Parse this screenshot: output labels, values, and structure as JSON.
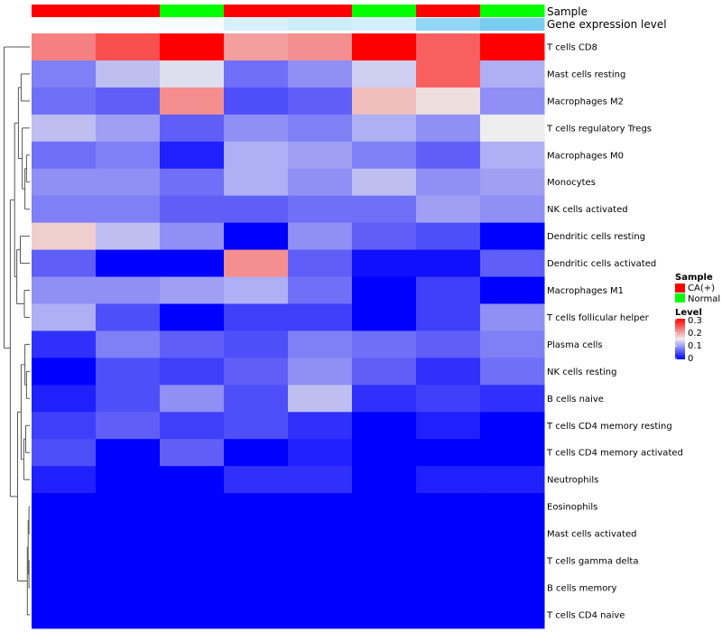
{
  "chart_data": {
    "type": "heatmap",
    "title": "",
    "annotation_labels": {
      "sample": "Sample",
      "gene_expression": "Gene expression level"
    },
    "samples": [
      {
        "group": "CA(+)",
        "gene_expression": 0.0
      },
      {
        "group": "CA(+)",
        "gene_expression": 0.02
      },
      {
        "group": "Normal",
        "gene_expression": 0.03
      },
      {
        "group": "CA(+)",
        "gene_expression": 0.16
      },
      {
        "group": "CA(+)",
        "gene_expression": 0.2
      },
      {
        "group": "Normal",
        "gene_expression": 0.18
      },
      {
        "group": "CA(+)",
        "gene_expression": 0.45
      },
      {
        "group": "Normal",
        "gene_expression": 0.55
      }
    ],
    "rows": [
      "T cells CD8",
      "Mast cells resting",
      "Macrophages M2",
      "T cells regulatory  Tregs",
      "Macrophages M0",
      "Monocytes",
      "NK cells activated",
      "Dendritic cells resting",
      "Dendritic cells activated",
      "Macrophages M1",
      "T cells follicular helper",
      "Plasma cells",
      "NK cells resting",
      "B cells naive",
      "T cells CD4 memory resting",
      "T cells CD4 memory activated",
      "Neutrophils",
      "Eosinophils",
      "Mast cells activated",
      "T cells gamma delta",
      "B cells memory",
      "T cells CD4 naive"
    ],
    "values": [
      [
        0.22,
        0.25,
        0.3,
        0.2,
        0.21,
        0.3,
        0.24,
        0.3
      ],
      [
        0.08,
        0.12,
        0.14,
        0.07,
        0.09,
        0.13,
        0.24,
        0.11
      ],
      [
        0.07,
        0.06,
        0.21,
        0.05,
        0.06,
        0.18,
        0.16,
        0.09
      ],
      [
        0.12,
        0.1,
        0.06,
        0.09,
        0.08,
        0.11,
        0.09,
        0.15
      ],
      [
        0.07,
        0.08,
        0.02,
        0.11,
        0.1,
        0.08,
        0.06,
        0.11
      ],
      [
        0.09,
        0.09,
        0.07,
        0.11,
        0.09,
        0.12,
        0.09,
        0.1
      ],
      [
        0.08,
        0.08,
        0.06,
        0.06,
        0.07,
        0.07,
        0.1,
        0.09
      ],
      [
        0.17,
        0.12,
        0.09,
        0.0,
        0.09,
        0.06,
        0.05,
        0.0
      ],
      [
        0.06,
        0.0,
        0.0,
        0.21,
        0.06,
        0.01,
        0.01,
        0.06
      ],
      [
        0.09,
        0.09,
        0.1,
        0.11,
        0.07,
        0.0,
        0.04,
        0.0
      ],
      [
        0.11,
        0.05,
        0.0,
        0.04,
        0.04,
        0.0,
        0.04,
        0.09
      ],
      [
        0.03,
        0.08,
        0.06,
        0.05,
        0.08,
        0.07,
        0.06,
        0.08
      ],
      [
        0.0,
        0.05,
        0.04,
        0.06,
        0.09,
        0.06,
        0.03,
        0.07
      ],
      [
        0.02,
        0.05,
        0.09,
        0.05,
        0.12,
        0.03,
        0.04,
        0.03
      ],
      [
        0.04,
        0.06,
        0.04,
        0.05,
        0.03,
        0.0,
        0.02,
        0.0
      ],
      [
        0.05,
        0.0,
        0.06,
        0.0,
        0.02,
        0.0,
        0.0,
        0.0
      ],
      [
        0.02,
        0.0,
        0.0,
        0.03,
        0.03,
        0.0,
        0.02,
        0.02
      ],
      [
        0.0,
        0.0,
        0.0,
        0.0,
        0.0,
        0.0,
        0.0,
        0.0
      ],
      [
        0.0,
        0.0,
        0.0,
        0.0,
        0.0,
        0.0,
        0.0,
        0.0
      ],
      [
        0.0,
        0.0,
        0.0,
        0.0,
        0.0,
        0.0,
        0.0,
        0.0
      ],
      [
        0.0,
        0.0,
        0.0,
        0.0,
        0.0,
        0.0,
        0.0,
        0.0
      ],
      [
        0.0,
        0.0,
        0.0,
        0.0,
        0.0,
        0.0,
        0.0,
        0.0
      ]
    ],
    "color_scale": {
      "min": 0,
      "mid": 0.15,
      "max": 0.3,
      "low": "#0000FF",
      "mid_color": "#EEEEEE",
      "high": "#FF0000"
    },
    "gene_expression_scale": {
      "min": 0,
      "max": 0.6,
      "low": "#FFFFFF",
      "high": "#6CC8F0"
    },
    "legend": {
      "sample_title": "Sample",
      "groups": [
        {
          "label": "CA(+)",
          "color": "#FF0000"
        },
        {
          "label": "Normal",
          "color": "#00FF00"
        }
      ],
      "level_title": "Level",
      "level_ticks": [
        "0.3",
        "0.2",
        "0.1",
        "0"
      ]
    },
    "dendrogram": "rows clustered (hierarchical)"
  }
}
